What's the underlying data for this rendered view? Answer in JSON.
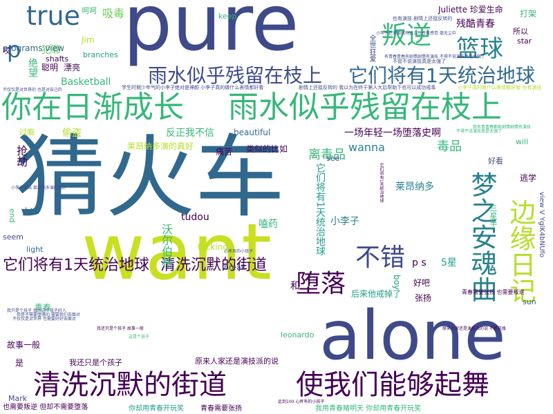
{
  "palette": {
    "dark_purple": "#440154",
    "indigo": "#3e4a89",
    "blue": "#31688e",
    "teal": "#26828e",
    "cyan": "#1f9e89",
    "green": "#35b779",
    "light_green": "#6ece58",
    "lime": "#b5de2b",
    "yellow_green": "#c8e020"
  },
  "words": [
    {
      "text": "猜火车",
      "color": "#31688e"
    },
    {
      "text": "pure",
      "color": "#3e4a89"
    },
    {
      "text": "want",
      "color": "#c8e020"
    },
    {
      "text": "alone",
      "color": "#3e4a89"
    },
    {
      "text": "你在日渐成长",
      "color": "#35b779"
    },
    {
      "text": "雨水似乎残留在枝上",
      "color": "#35b779"
    },
    {
      "text": "清洗沉默的街道",
      "color": "#440154"
    },
    {
      "text": "使我们能够起舞",
      "color": "#440154"
    },
    {
      "text": "雨水似乎残留在枝上",
      "color": "#3e4a89"
    },
    {
      "text": "它们将有1天统治地球",
      "color": "#31688e"
    },
    {
      "text": "它们将有1天统治地球",
      "color": "#440154"
    },
    {
      "text": "清洗沉默的街道",
      "color": "#440154"
    },
    {
      "text": "true",
      "color": "#31688e"
    },
    {
      "text": "叛逆",
      "color": "#35b779"
    },
    {
      "text": "篮球",
      "color": "#26828e"
    },
    {
      "text": "不错",
      "color": "#3e4a89"
    },
    {
      "text": "堕落",
      "color": "#440154"
    },
    {
      "text": "梦之安魂曲",
      "color": "#26828e"
    },
    {
      "text": "边缘日记",
      "color": "#b5de2b"
    },
    {
      "text": "p",
      "color": "#31688e"
    },
    {
      "text": "毒品",
      "color": "#35b779"
    },
    {
      "text": "离毒品",
      "color": "#35b779"
    },
    {
      "text": "吸毒",
      "color": "#6ece58"
    },
    {
      "text": "犯罪",
      "color": "#6ece58"
    },
    {
      "text": "聪明",
      "color": "#440154"
    },
    {
      "text": "漂亮",
      "color": "#440154"
    },
    {
      "text": "绝望",
      "color": "#35b779"
    },
    {
      "text": "残酷青春",
      "color": "#440154"
    },
    {
      "text": "Juliette 珍爱生命",
      "color": "#440154"
    },
    {
      "text": "一场年轻一场堕落史啊",
      "color": "#440154"
    },
    {
      "text": "莱昂纳多演的真好",
      "color": "#b5de2b"
    },
    {
      "text": "莱昂纳多",
      "color": "#26828e"
    },
    {
      "text": "programs view",
      "color": "#31688e"
    },
    {
      "text": "Jim",
      "color": "#b5de2b"
    },
    {
      "text": "branches",
      "color": "#1f9e89"
    },
    {
      "text": "shafts",
      "color": "#440154"
    },
    {
      "text": "Basketball",
      "color": "#35b779"
    },
    {
      "text": "偷盗",
      "color": "#b5de2b"
    },
    {
      "text": "抢劫",
      "color": "#440154"
    },
    {
      "text": "反正我不信",
      "color": "#35b779"
    },
    {
      "text": "痛苦",
      "color": "#440154"
    },
    {
      "text": "类似的比如",
      "color": "#440154"
    },
    {
      "text": "beautiful",
      "color": "#31688e"
    },
    {
      "text": "wanna",
      "color": "#26828e"
    },
    {
      "text": "tudou",
      "color": "#440154"
    },
    {
      "text": "沃尔伯格",
      "color": "#35b779"
    },
    {
      "text": "嗑药",
      "color": "#35b779"
    },
    {
      "text": "小李子",
      "color": "#26828e"
    },
    {
      "text": "它们将有1天统治地球",
      "color": "#1f9e89"
    },
    {
      "text": "5星",
      "color": "#1f9e89"
    },
    {
      "text": "好吧",
      "color": "#440154"
    },
    {
      "text": "和",
      "color": "#440154"
    },
    {
      "text": "p s",
      "color": "#440154"
    },
    {
      "text": "张扬",
      "color": "#440154"
    },
    {
      "text": "boy",
      "color": "#1f9e89"
    },
    {
      "text": "sun",
      "color": "#31688e"
    },
    {
      "text": "后来他戒掉了",
      "color": "#1f9e89"
    },
    {
      "text": "青春",
      "color": "#35b779"
    },
    {
      "text": "leonardo",
      "color": "#35b779"
    },
    {
      "text": "故事一般",
      "color": "#440154"
    },
    {
      "text": "是",
      "color": "#440154"
    },
    {
      "text": "我还只是个孩子",
      "color": "#440154"
    },
    {
      "text": "原来人家还是演技派的说",
      "color": "#440154"
    },
    {
      "text": "Mark",
      "color": "#3e4a89"
    },
    {
      "text": "也需要叛逆 但却不需要堕落",
      "color": "#440154"
    },
    {
      "text": "你却用青春开玩笑",
      "color": "#1f9e89"
    },
    {
      "text": "青春需要张扬",
      "color": "#440154"
    },
    {
      "text": "青春需要张扬 也需要叛逆",
      "color": "#440154"
    },
    {
      "text": "我用青春赌明天 你却用青春开玩笑",
      "color": "#35b779"
    },
    {
      "text": "btw",
      "color": "#31688e"
    },
    {
      "text": "end",
      "color": "#35b779"
    },
    {
      "text": "seem",
      "color": "#3e4a89"
    },
    {
      "text": "light",
      "color": "#31688e"
    },
    {
      "text": "fucking",
      "color": "#b5de2b"
    },
    {
      "text": "break",
      "color": "#3e4a89"
    },
    {
      "text": "see",
      "color": "#3e4a89"
    },
    {
      "text": "好看",
      "color": "#3e4a89"
    },
    {
      "text": "will",
      "color": "#35b779"
    },
    {
      "text": "逃学",
      "color": "#440154"
    },
    {
      "text": "三星半",
      "color": "#35b779"
    },
    {
      "text": "view V YglK4bNUfo",
      "color": "#3e4a89"
    },
    {
      "text": "打架",
      "color": "#35b779"
    },
    {
      "text": "所以",
      "color": "#440154"
    },
    {
      "text": "star",
      "color": "#440154"
    },
    {
      "text": "keep",
      "color": "#35b779"
    },
    {
      "text": "呵呵",
      "color": "#35b779"
    },
    {
      "text": "哎",
      "color": "#440154"
    },
    {
      "text": "过瘾",
      "color": "#b5de2b"
    },
    {
      "text": "全世狂爱",
      "color": "#3e4a89"
    },
    {
      "text": "学生时期少年气的小李子绝对是神颜 小李子真的做什么表情都好看",
      "color": "#3e4a89"
    },
    {
      "text": "剧情上还挺反转的 我以为在终于第人大后帮助下也可以成功戒毒",
      "color": "#3e4a89"
    },
    {
      "text": "也有演技 剧情上还挺反转的",
      "color": "#3e4a89"
    },
    {
      "text": "不管不说演技真是太强了",
      "color": "#3e4a89"
    },
    {
      "text": "有青春青春有剧情剧情有演技 不得不说演技真是太强了",
      "color": "#3e4a89"
    },
    {
      "text": "小李子在里面就有这么性感有感觉 毫无尘中",
      "color": "#3e4a89"
    },
    {
      "text": "小李子真的做什么表情都好看 也有演技",
      "color": "#b5de2b"
    },
    {
      "text": "不得不说演技真是太强了",
      "color": "#35b779"
    },
    {
      "text": "我有青青春都能剧情剧情有演技",
      "color": "#35b779"
    },
    {
      "text": "心疼有的小孩子",
      "color": "#3e4a89"
    },
    {
      "text": "此到100 心疼有的小孩子",
      "color": "#440154"
    },
    {
      "text": "它们将有1天统治地球",
      "color": "#440154"
    },
    {
      "text": "我只是个孩子 我的这个孩子好人",
      "color": "#3e4a89"
    },
    {
      "text": "但是不需要堕落的 需要我们去面对",
      "color": "#3e4a89"
    },
    {
      "text": "不仅仅是对世界 也需要好好去面对",
      "color": "#3e4a89"
    },
    {
      "text": "我还只是个孩子 故事一般",
      "color": "#440154"
    },
    {
      "text": "这是个孩子",
      "color": "#35b779"
    },
    {
      "text": "不仅仅是对世界的 也是对自己的",
      "color": "#3e4a89"
    },
    {
      "text": "小李子演出 莱昂纳多演的真好",
      "color": "#3e4a89"
    },
    {
      "text": "原来人家还是演技派的说 不是花瓶",
      "color": "#440154"
    }
  ]
}
